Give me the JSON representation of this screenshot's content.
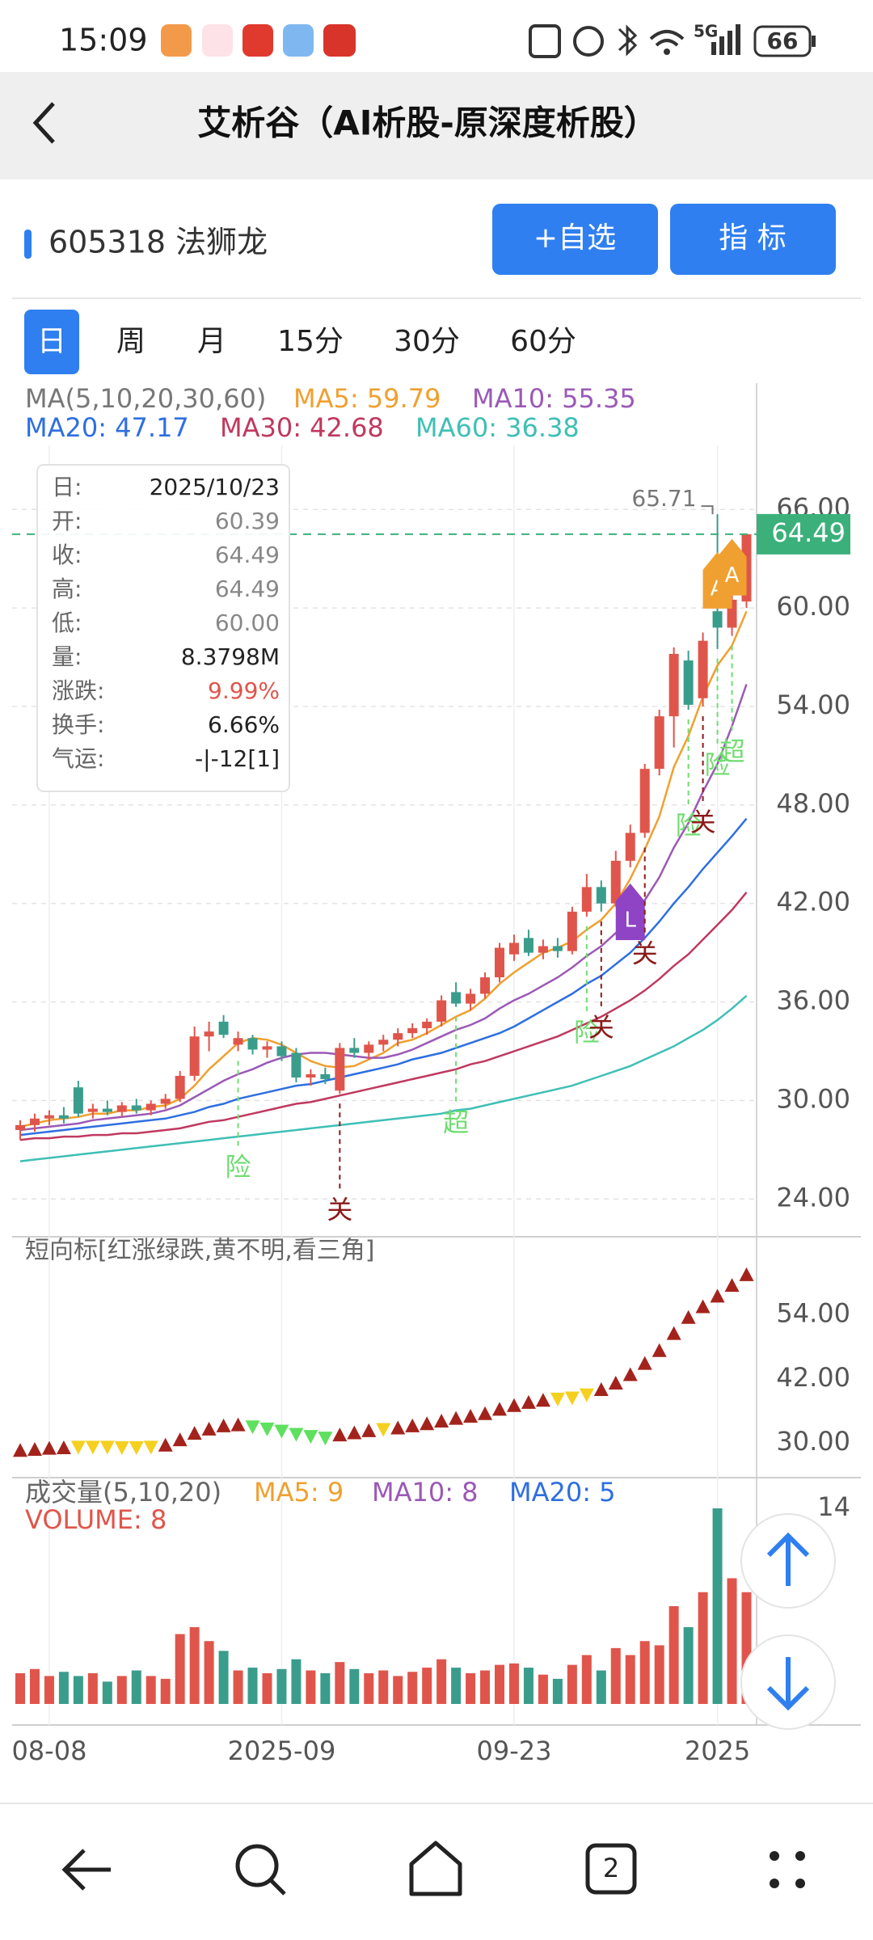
{
  "status_bar": {
    "time": "15:09",
    "network": "5G",
    "battery": "66"
  },
  "header": {
    "title": "艾析谷（AI析股-原深度析股）"
  },
  "stock": {
    "name": "605318 法狮龙",
    "buttons": [
      "+自选",
      "指 标"
    ]
  },
  "tabs": {
    "items": [
      "日",
      "周",
      "月",
      "15分",
      "30分",
      "60分"
    ],
    "selected": 0
  },
  "nav_bar": {
    "tab_count": "2"
  },
  "chart_data": [
    {
      "type": "candlestick",
      "legend_title": "MA(5,10,20,30,60)",
      "categories": [
        null,
        null,
        "08-08",
        null,
        null,
        null,
        null,
        null,
        null,
        null,
        null,
        null,
        null,
        null,
        null,
        null,
        null,
        null,
        "2025-09",
        null,
        null,
        null,
        null,
        null,
        null,
        null,
        null,
        null,
        null,
        null,
        null,
        null,
        null,
        null,
        "09-23",
        null,
        null,
        null,
        null,
        null,
        null,
        null,
        null,
        null,
        null,
        null,
        null,
        null,
        "2025",
        null,
        null
      ],
      "open": [
        28.2,
        28.5,
        28.9,
        29.1,
        30.8,
        29.3,
        29.5,
        29.3,
        29.7,
        29.4,
        29.8,
        30.1,
        31.5,
        33.9,
        34.8,
        33.4,
        33.8,
        33.1,
        33.3,
        32.9,
        31.4,
        31.6,
        30.6,
        33.2,
        32.9,
        33.4,
        33.7,
        34.1,
        34.4,
        34.8,
        36.6,
        35.9,
        36.5,
        37.5,
        38.9,
        39.9,
        39.0,
        39.4,
        39.1,
        41.5,
        43.0,
        42.0,
        44.6,
        46.3,
        50.2,
        53.4,
        56.8,
        54.5,
        59.8,
        58.8,
        60.39
      ],
      "high": [
        28.8,
        29.2,
        29.4,
        29.6,
        31.2,
        29.8,
        30.0,
        29.9,
        30.1,
        30.0,
        30.4,
        31.8,
        34.5,
        34.8,
        35.2,
        34.2,
        34.0,
        33.6,
        33.6,
        33.2,
        31.9,
        32.0,
        33.5,
        33.8,
        33.6,
        34.0,
        34.4,
        34.7,
        35.0,
        36.4,
        37.2,
        36.8,
        37.8,
        39.6,
        40.1,
        40.4,
        39.8,
        39.9,
        41.8,
        43.8,
        43.4,
        45.2,
        46.8,
        50.5,
        53.8,
        57.6,
        57.4,
        58.5,
        65.71,
        61.8,
        64.49
      ],
      "low": [
        27.6,
        28.1,
        28.5,
        28.6,
        29.0,
        28.9,
        29.1,
        29.0,
        29.2,
        29.1,
        29.5,
        29.9,
        31.2,
        33.0,
        33.8,
        33.0,
        32.8,
        32.6,
        32.4,
        31.1,
        30.9,
        31.0,
        30.4,
        32.6,
        32.5,
        33.0,
        33.3,
        33.8,
        34.0,
        34.5,
        35.7,
        35.5,
        36.2,
        37.2,
        38.5,
        38.8,
        38.6,
        38.7,
        38.9,
        41.2,
        41.5,
        41.8,
        44.2,
        46.0,
        49.8,
        51.5,
        53.8,
        54.0,
        57.5,
        58.3,
        60.0
      ],
      "close": [
        28.5,
        28.9,
        29.1,
        28.9,
        29.2,
        29.5,
        29.3,
        29.7,
        29.4,
        29.8,
        30.1,
        31.5,
        33.9,
        34.2,
        34.0,
        33.8,
        33.1,
        33.3,
        32.7,
        31.4,
        31.6,
        31.3,
        33.2,
        32.9,
        33.4,
        33.7,
        34.1,
        34.4,
        34.8,
        36.1,
        35.9,
        36.5,
        37.5,
        39.3,
        39.6,
        39.0,
        39.4,
        39.1,
        41.5,
        43.0,
        42.0,
        44.6,
        46.3,
        50.2,
        53.4,
        57.2,
        54.1,
        58.0,
        58.8,
        60.5,
        64.49
      ],
      "up_color": "#e0554b",
      "down_color": "#3a9d8c",
      "series": [
        {
          "name": "MA5: 59.79",
          "color": "#f0a030",
          "values": [
            28.4,
            28.6,
            28.8,
            28.9,
            29.0,
            29.2,
            29.2,
            29.4,
            29.4,
            29.6,
            29.7,
            30.1,
            30.9,
            31.9,
            32.7,
            33.5,
            33.8,
            33.7,
            33.4,
            32.9,
            32.4,
            32.1,
            32.0,
            32.1,
            32.5,
            32.9,
            33.5,
            33.7,
            34.1,
            34.6,
            35.1,
            35.5,
            36.2,
            37.1,
            37.8,
            38.4,
            39.0,
            39.3,
            39.7,
            40.4,
            41.0,
            42.0,
            43.5,
            45.3,
            47.3,
            50.3,
            52.2,
            54.6,
            56.5,
            57.7,
            59.79
          ]
        },
        {
          "name": "MA10: 55.35",
          "color": "#9b59b6",
          "values": [
            28.2,
            28.3,
            28.4,
            28.5,
            28.6,
            28.8,
            28.9,
            29.0,
            29.1,
            29.2,
            29.4,
            29.7,
            30.2,
            30.7,
            31.2,
            31.6,
            31.9,
            32.3,
            32.6,
            32.8,
            32.9,
            32.9,
            32.8,
            32.7,
            32.6,
            32.6,
            32.8,
            33.1,
            33.5,
            33.9,
            34.3,
            34.6,
            35.0,
            35.6,
            36.1,
            36.5,
            37.0,
            37.5,
            38.1,
            38.8,
            39.4,
            40.2,
            41.1,
            42.2,
            43.6,
            45.4,
            46.9,
            48.8,
            50.5,
            52.8,
            55.35
          ]
        },
        {
          "name": "MA20: 47.17",
          "color": "#2e6fe0",
          "values": [
            27.9,
            28.0,
            28.1,
            28.2,
            28.3,
            28.4,
            28.5,
            28.6,
            28.7,
            28.8,
            28.9,
            29.1,
            29.3,
            29.6,
            29.8,
            30.1,
            30.3,
            30.5,
            30.7,
            30.9,
            31.0,
            31.2,
            31.4,
            31.6,
            31.8,
            32.0,
            32.2,
            32.5,
            32.7,
            32.9,
            33.2,
            33.5,
            33.8,
            34.1,
            34.5,
            35.0,
            35.5,
            36.0,
            36.5,
            37.1,
            37.6,
            38.3,
            39.0,
            39.9,
            40.9,
            42.0,
            43.0,
            44.1,
            45.1,
            46.1,
            47.17
          ]
        },
        {
          "name": "MA30: 42.68",
          "color": "#c0395f",
          "values": [
            27.6,
            27.7,
            27.7,
            27.8,
            27.8,
            27.9,
            27.9,
            28.0,
            28.0,
            28.1,
            28.2,
            28.3,
            28.5,
            28.7,
            28.8,
            29.0,
            29.2,
            29.4,
            29.6,
            29.8,
            29.9,
            30.1,
            30.3,
            30.5,
            30.7,
            30.9,
            31.1,
            31.3,
            31.5,
            31.7,
            31.9,
            32.2,
            32.4,
            32.7,
            33.0,
            33.3,
            33.6,
            33.9,
            34.3,
            34.7,
            35.1,
            35.6,
            36.1,
            36.7,
            37.4,
            38.2,
            38.9,
            39.8,
            40.7,
            41.6,
            42.68
          ]
        },
        {
          "name": "MA60: 36.38",
          "color": "#3fbfb5",
          "values": [
            26.3,
            26.4,
            26.5,
            26.6,
            26.7,
            26.8,
            26.9,
            27.0,
            27.1,
            27.2,
            27.3,
            27.4,
            27.5,
            27.6,
            27.7,
            27.8,
            27.9,
            28.0,
            28.1,
            28.2,
            28.3,
            28.4,
            28.5,
            28.6,
            28.7,
            28.8,
            28.9,
            29.0,
            29.1,
            29.2,
            29.4,
            29.5,
            29.7,
            29.9,
            30.1,
            30.3,
            30.5,
            30.7,
            30.9,
            31.2,
            31.5,
            31.8,
            32.1,
            32.5,
            32.9,
            33.3,
            33.8,
            34.3,
            34.9,
            35.6,
            36.38
          ]
        }
      ],
      "ylim": [
        21.7,
        69.9
      ],
      "yticks": [
        {
          "value": 24,
          "label": "24.00"
        },
        {
          "value": 30,
          "label": "30.00"
        },
        {
          "value": 36,
          "label": "36.00"
        },
        {
          "value": 42,
          "label": "42.00"
        },
        {
          "value": 48,
          "label": "48.00"
        },
        {
          "value": 54,
          "label": "54.00"
        },
        {
          "value": 60,
          "label": "60.00"
        },
        {
          "value": 66,
          "label": "66.00"
        }
      ],
      "grid": true,
      "last_price": 64.49,
      "last_price_color": "#3bb07b",
      "high_label": 65.71,
      "tooltip": [
        {
          "label": "日:",
          "value": "2025/10/23",
          "color": "#222222"
        },
        {
          "label": "开:",
          "value": "60.39",
          "color": "#888888"
        },
        {
          "label": "收:",
          "value": "64.49",
          "color": "#888888"
        },
        {
          "label": "高:",
          "value": "64.49",
          "color": "#888888"
        },
        {
          "label": "低:",
          "value": "60.00",
          "color": "#888888"
        },
        {
          "label": "量:",
          "value": "8.3798M",
          "color": "#222222"
        },
        {
          "label": "涨跌:",
          "value": "9.99%",
          "color": "#e0554b"
        },
        {
          "label": "换手:",
          "value": "6.66%",
          "color": "#222222"
        },
        {
          "label": "气运:",
          "value": "-|-12[1]",
          "color": "#222222"
        }
      ],
      "signals": [
        {
          "label": "险",
          "x": 15,
          "color": "#6fdc6f"
        },
        {
          "label": "关",
          "x": 22,
          "color": "#8b1a1a"
        },
        {
          "label": "超",
          "x": 30,
          "color": "#6fdc6f"
        },
        {
          "label": "险",
          "x": 39,
          "color": "#6fdc6f"
        },
        {
          "label": "关",
          "x": 40,
          "color": "#8b1a1a"
        },
        {
          "label": "L",
          "x": 42,
          "color": "#8e44c4",
          "box": true
        },
        {
          "label": "关",
          "x": 43,
          "color": "#8b1a1a"
        },
        {
          "label": "险",
          "x": 46,
          "color": "#6fdc6f"
        },
        {
          "label": "关",
          "x": 47,
          "color": "#8b1a1a"
        },
        {
          "label": "险",
          "x": 48,
          "color": "#6fdc6f"
        },
        {
          "label": "超",
          "x": 49,
          "color": "#6fdc6f"
        },
        {
          "label": "A",
          "x": 48,
          "color": "#f0a030",
          "box": true
        },
        {
          "label": "A",
          "x": 49,
          "color": "#f0a030",
          "box": true
        }
      ]
    },
    {
      "type": "triangle",
      "title": "短向标[红涨绿跌,黄不明,看三角]",
      "values": [
        28.6,
        28.8,
        29.0,
        29.1,
        29.2,
        29.2,
        29.2,
        29.1,
        29.1,
        29.2,
        29.6,
        30.6,
        31.8,
        32.6,
        33.2,
        33.4,
        33.0,
        32.6,
        32.2,
        31.6,
        31.2,
        30.9,
        31.5,
        31.9,
        32.3,
        32.5,
        32.8,
        33.2,
        33.6,
        34.1,
        34.6,
        35.0,
        35.5,
        36.3,
        37.0,
        37.6,
        38.0,
        38.2,
        38.4,
        39.0,
        40.0,
        41.2,
        42.8,
        44.9,
        47.3,
        50.5,
        53.5,
        55.5,
        57.5,
        59.5,
        61.5
      ],
      "up_color": "#a3231c",
      "colors": [
        "#a3231c",
        "#a3231c",
        "#a3231c",
        "#a3231c",
        "#f5d020",
        "#f5d020",
        "#f5d020",
        "#f5d020",
        "#f5d020",
        "#f5d020",
        "#a3231c",
        "#a3231c",
        "#a3231c",
        "#a3231c",
        "#a3231c",
        "#a3231c",
        "#5fe05f",
        "#5fe05f",
        "#5fe05f",
        "#5fe05f",
        "#5fe05f",
        "#5fe05f",
        "#a3231c",
        "#a3231c",
        "#a3231c",
        "#f5d020",
        "#a3231c",
        "#a3231c",
        "#a3231c",
        "#a3231c",
        "#a3231c",
        "#a3231c",
        "#a3231c",
        "#a3231c",
        "#a3231c",
        "#a3231c",
        "#a3231c",
        "#f5d020",
        "#f5d020",
        "#f5d020",
        "#a3231c",
        "#a3231c",
        "#a3231c",
        "#a3231c",
        "#a3231c",
        "#a3231c",
        "#a3231c",
        "#a3231c",
        "#a3231c",
        "#a3231c",
        "#a3231c"
      ],
      "ylim": [
        23.5,
        68.6
      ],
      "yticks": [
        {
          "value": 30,
          "label": "30.00"
        },
        {
          "value": 42,
          "label": "42.00"
        },
        {
          "value": 54,
          "label": "54.00"
        }
      ]
    },
    {
      "type": "volume",
      "title": "成交量(5,10,20)",
      "legend": [
        {
          "name": "MA5: 9",
          "color": "#f0a030"
        },
        {
          "name": "MA10: 8",
          "color": "#9b59b6"
        },
        {
          "name": "MA20: 5",
          "color": "#2e6fe0"
        }
      ],
      "volume_label": "VOLUME: 8",
      "volume_label_color": "#e0554b",
      "values": [
        2.2,
        2.5,
        2.0,
        2.3,
        2.0,
        2.2,
        1.6,
        2.0,
        2.4,
        2.0,
        1.8,
        5.0,
        5.5,
        4.5,
        3.8,
        2.4,
        2.6,
        2.2,
        2.5,
        3.2,
        2.4,
        2.2,
        3.0,
        2.5,
        2.2,
        2.4,
        2.0,
        2.3,
        2.6,
        3.2,
        2.6,
        2.2,
        2.4,
        2.8,
        2.9,
        2.6,
        2.1,
        1.8,
        2.8,
        3.5,
        2.4,
        4.0,
        3.5,
        4.5,
        4.2,
        7.0,
        5.5,
        8.0,
        14.0,
        9.0,
        8.0
      ],
      "ylim": [
        0,
        16.2
      ],
      "yticks": [
        14
      ]
    }
  ]
}
